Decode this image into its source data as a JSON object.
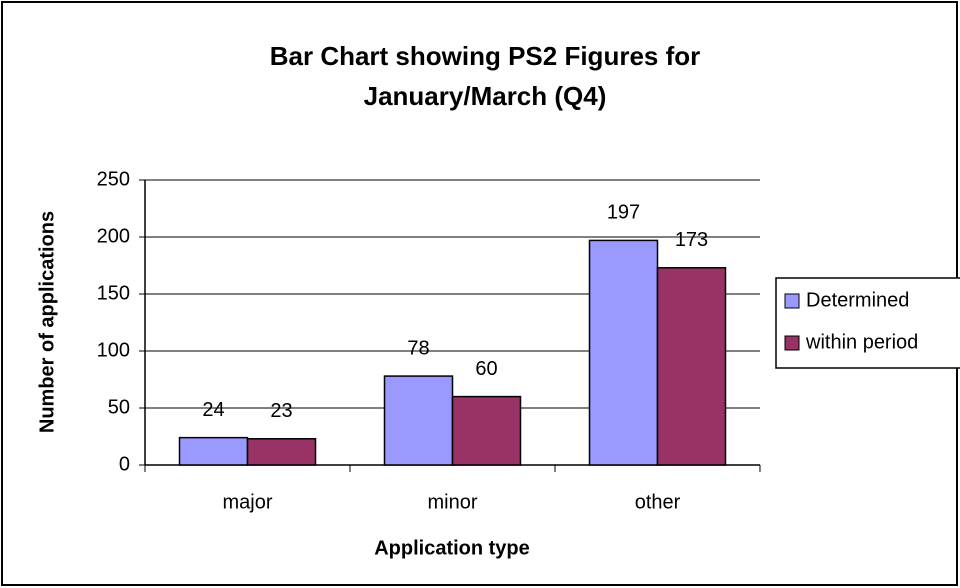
{
  "chart_data": {
    "type": "bar",
    "title": [
      "Bar Chart showing PS2 Figures for",
      "January/March (Q4)"
    ],
    "x_label": "Application type",
    "y_label": "Number of applications",
    "categories": [
      "major",
      "minor",
      "other"
    ],
    "series": [
      {
        "name": "Determined",
        "color": "#9999ff",
        "values": [
          24,
          78,
          197
        ]
      },
      {
        "name": "within period",
        "color": "#993366",
        "values": [
          23,
          60,
          173
        ]
      }
    ],
    "ylim": [
      0,
      250
    ],
    "yticks": [
      0,
      50,
      100,
      150,
      200,
      250
    ],
    "grid": true,
    "legend": "right"
  }
}
